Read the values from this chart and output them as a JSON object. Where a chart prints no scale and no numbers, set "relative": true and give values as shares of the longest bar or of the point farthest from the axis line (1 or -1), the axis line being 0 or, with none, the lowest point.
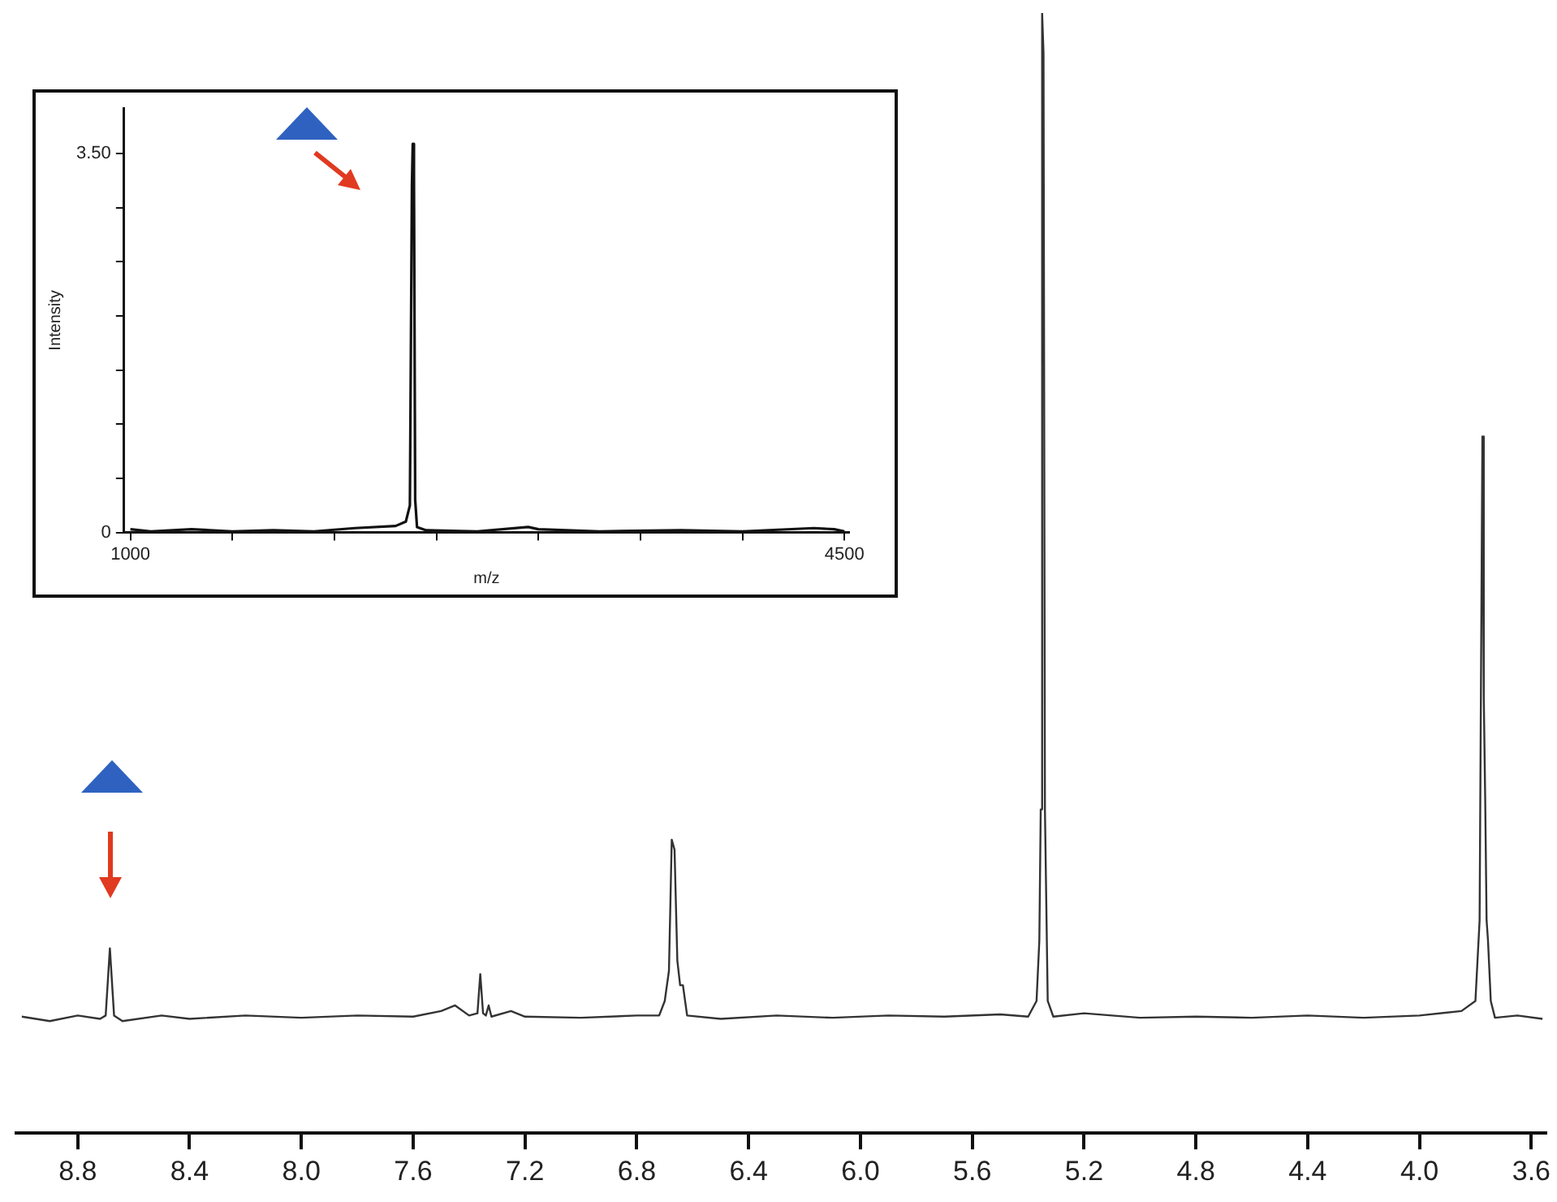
{
  "chart_data": [
    {
      "type": "line",
      "relative": true,
      "color": "#333333",
      "xlim": [
        9.02,
        3.55
      ],
      "xticks": [
        8.8,
        8.4,
        {
          "value": 8.0,
          "label": "8.0"
        },
        7.6,
        7.2,
        6.8,
        6.4,
        {
          "value": 6.0,
          "label": "6.0"
        },
        5.6,
        5.2,
        4.8,
        4.4,
        {
          "value": 4.0,
          "label": "4.0"
        },
        3.6
      ],
      "x": [
        9.0,
        8.9,
        8.8,
        8.72,
        8.7,
        8.685,
        8.67,
        8.64,
        8.5,
        8.4,
        8.2,
        8.0,
        7.8,
        7.6,
        7.5,
        7.45,
        7.4,
        7.37,
        7.36,
        7.35,
        7.34,
        7.33,
        7.32,
        7.25,
        7.2,
        7.0,
        6.8,
        6.72,
        6.7,
        6.685,
        6.675,
        6.665,
        6.655,
        6.645,
        6.635,
        6.62,
        6.5,
        6.3,
        6.1,
        5.9,
        5.7,
        5.5,
        5.4,
        5.37,
        5.36,
        5.355,
        5.35,
        5.345,
        5.34,
        5.33,
        5.31,
        5.2,
        5.0,
        4.8,
        4.6,
        4.4,
        4.2,
        4.0,
        3.85,
        3.8,
        3.785,
        3.775,
        3.77,
        3.765,
        3.76,
        3.755,
        3.745,
        3.73,
        3.65,
        3.56
      ],
      "values": [
        0.104,
        0.1,
        0.105,
        0.102,
        0.105,
        0.165,
        0.105,
        0.1,
        0.105,
        0.102,
        0.105,
        0.103,
        0.105,
        0.104,
        0.109,
        0.114,
        0.105,
        0.107,
        0.142,
        0.107,
        0.105,
        0.114,
        0.104,
        0.109,
        0.104,
        0.103,
        0.105,
        0.105,
        0.118,
        0.145,
        0.262,
        0.253,
        0.154,
        0.132,
        0.132,
        0.105,
        0.102,
        0.105,
        0.103,
        0.105,
        0.104,
        0.106,
        0.104,
        0.118,
        0.172,
        0.289,
        1.0,
        0.964,
        0.289,
        0.118,
        0.104,
        0.107,
        0.103,
        0.104,
        0.103,
        0.105,
        0.103,
        0.105,
        0.109,
        0.118,
        0.19,
        0.622,
        0.388,
        0.298,
        0.19,
        0.172,
        0.118,
        0.103,
        0.105,
        0.102
      ]
    },
    {
      "type": "line",
      "color": "#111111",
      "xlabel": "m/z",
      "ylabel": "Intensity",
      "xlim": [
        969,
        4523
      ],
      "ylim": [
        0,
        3.92
      ],
      "xticks": [
        1000,
        {
          "value": 1500,
          "label": null
        },
        {
          "value": 2000,
          "label": null
        },
        {
          "value": 2500,
          "label": null
        },
        {
          "value": 3000,
          "label": null
        },
        {
          "value": 3500,
          "label": null
        },
        {
          "value": 4000,
          "label": null
        },
        4500
      ],
      "yticks": [
        0,
        {
          "value": 0.5,
          "label": null
        },
        {
          "value": 1.0,
          "label": null
        },
        {
          "value": 1.5,
          "label": null
        },
        {
          "value": 2.0,
          "label": null
        },
        {
          "value": 2.5,
          "label": null
        },
        {
          "value": 3.0,
          "label": null
        },
        {
          "value": 3.5,
          "label": "3.50"
        }
      ],
      "x": [
        1000,
        1100,
        1300,
        1500,
        1700,
        1900,
        2100,
        2300,
        2350,
        2370,
        2380,
        2384,
        2390,
        2396,
        2405,
        2450,
        2700,
        2950,
        3000,
        3300,
        3700,
        4000,
        4350,
        4450,
        4500
      ],
      "values": [
        0.03,
        0.01,
        0.03,
        0.01,
        0.02,
        0.01,
        0.04,
        0.06,
        0.1,
        0.25,
        3.2,
        3.59,
        3.3,
        0.3,
        0.05,
        0.02,
        0.01,
        0.05,
        0.03,
        0.01,
        0.02,
        0.01,
        0.04,
        0.03,
        0.01
      ]
    }
  ]
}
